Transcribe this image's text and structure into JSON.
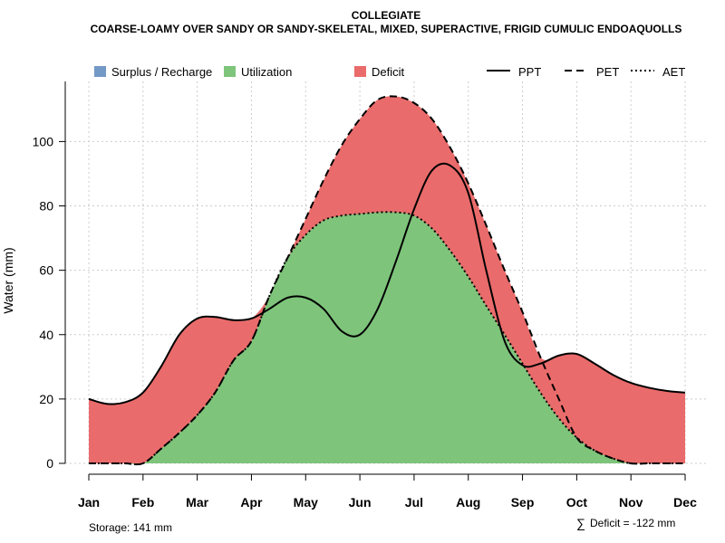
{
  "chart_data": {
    "type": "area",
    "title": "COLLEGIATE",
    "subtitle": "COARSE-LOAMY OVER SANDY OR SANDY-SKELETAL, MIXED, SUPERACTIVE, FRIGID CUMULIC ENDOAQUOLLS",
    "ylabel": "Water (mm)",
    "xlabel": "",
    "ylim": [
      0,
      118
    ],
    "yticks": [
      0,
      20,
      40,
      60,
      80,
      100
    ],
    "grid": true,
    "legend_position": "top",
    "months": [
      "Jan",
      "Feb",
      "Mar",
      "Apr",
      "May",
      "Jun",
      "Jul",
      "Aug",
      "Sep",
      "Oct",
      "Nov",
      "Dec"
    ],
    "x": [
      1,
      1.33,
      1.67,
      2,
      2.33,
      2.67,
      3,
      3.33,
      3.67,
      4,
      4.33,
      4.67,
      5,
      5.33,
      5.67,
      6,
      6.33,
      6.67,
      7,
      7.33,
      7.67,
      8,
      8.33,
      8.67,
      9,
      9.33,
      9.67,
      10,
      10.33,
      10.67,
      11,
      11.33,
      11.67,
      12
    ],
    "series": [
      {
        "name": "PPT",
        "line": "solid",
        "values": [
          20,
          18.5,
          19,
          22,
          30,
          40,
          45,
          45.5,
          44.5,
          45,
          48,
          51.5,
          51.5,
          48,
          41,
          40,
          48,
          63,
          79,
          91,
          92.5,
          84,
          60,
          38,
          30.5,
          31,
          33.5,
          34,
          31,
          27.5,
          25,
          23.5,
          22.5,
          22
        ]
      },
      {
        "name": "PET",
        "line": "dashed",
        "values": [
          0,
          0,
          0,
          0,
          4.5,
          9.5,
          15,
          22,
          32,
          38,
          52,
          64,
          76,
          88,
          99,
          107,
          113,
          114,
          112,
          107,
          98,
          87,
          74,
          60,
          47,
          33,
          20,
          8,
          4,
          1.5,
          0,
          0,
          0,
          0
        ]
      },
      {
        "name": "AET",
        "line": "dotted",
        "values": [
          0,
          0,
          0,
          0,
          4.5,
          9.5,
          15,
          22,
          32,
          38,
          52,
          64,
          71,
          75.5,
          77,
          77.5,
          78,
          78,
          77,
          73,
          66,
          58,
          49,
          40,
          31,
          22,
          14,
          8,
          4,
          1.5,
          0,
          0,
          0,
          0
        ]
      }
    ],
    "legend": [
      {
        "label": "Surplus / Recharge",
        "kind": "fill",
        "color": "#7399c6"
      },
      {
        "label": "Utilization",
        "kind": "fill",
        "color": "#7ec47b"
      },
      {
        "label": "Deficit",
        "kind": "fill",
        "color": "#ea6b6b"
      },
      {
        "label": "PPT",
        "kind": "line",
        "dash": "solid"
      },
      {
        "label": "PET",
        "kind": "line",
        "dash": "dashed"
      },
      {
        "label": "AET",
        "kind": "line",
        "dash": "dotted"
      }
    ],
    "annotations": {
      "storage": "Storage: 141 mm",
      "deficit_symbol": "∑",
      "deficit": "Deficit = -122 mm"
    },
    "colors": {
      "surplus": "#7399c6",
      "utilization": "#7ec47b",
      "deficit": "#ea6b6b",
      "grid": "#cccccc",
      "axis": "#000000"
    }
  }
}
